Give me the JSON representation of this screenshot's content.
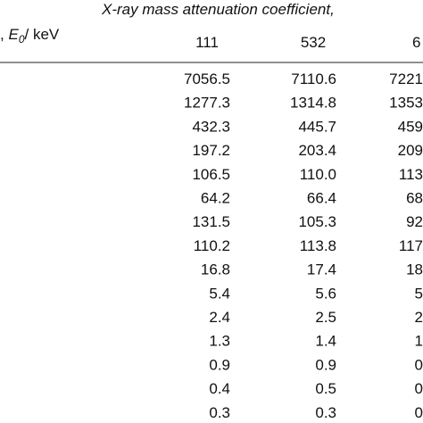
{
  "header": {
    "title": "X-ray mass attenuation coefficient,",
    "row_label": {
      "prefix": ",",
      "symbol": "E",
      "subscript": "0",
      "unit": "/ keV"
    },
    "columns": [
      "111",
      "532",
      "6"
    ]
  },
  "table": {
    "rows": [
      [
        "7056.5",
        "7110.6",
        "7221"
      ],
      [
        "1277.3",
        "1314.8",
        "1353"
      ],
      [
        "432.3",
        "445.7",
        "459"
      ],
      [
        "197.2",
        "203.4",
        "209"
      ],
      [
        "106.5",
        "110.0",
        "113"
      ],
      [
        "64.2",
        "66.4",
        "68"
      ],
      [
        "131.5",
        "105.3",
        "92"
      ],
      [
        "110.2",
        "113.8",
        "117"
      ],
      [
        "16.8",
        "17.4",
        "18"
      ],
      [
        "5.4",
        "5.6",
        "5"
      ],
      [
        "2.4",
        "2.5",
        "2"
      ],
      [
        "1.3",
        "1.4",
        "1"
      ],
      [
        "0.9",
        "0.9",
        "0"
      ],
      [
        "0.4",
        "0.5",
        "0"
      ],
      [
        "0.3",
        "0.3",
        "0"
      ]
    ]
  }
}
